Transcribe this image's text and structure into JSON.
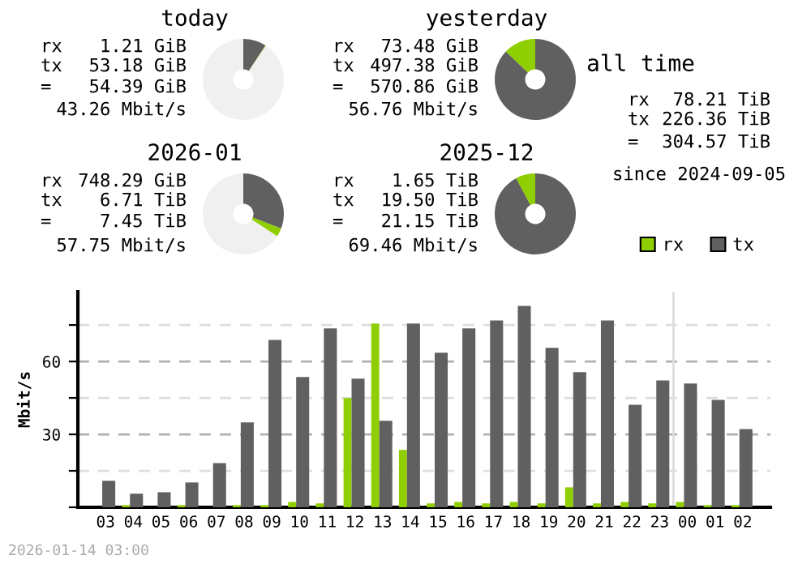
{
  "chart_data": [
    {
      "type": "donut",
      "title": "today",
      "categories": [
        null,
        null,
        null
      ],
      "values": [
        9.2,
        0.2,
        90.6
      ],
      "colors": [
        "#606060",
        "#8fce00",
        "#f0f0f0"
      ],
      "annotations": [
        "rx",
        "1.21 GiB",
        "tx",
        "53.18 GiB",
        "=",
        "54.39 GiB",
        "43.26 Mbit/s"
      ]
    },
    {
      "type": "donut",
      "title": "yesterday",
      "categories": [
        null,
        null
      ],
      "values": [
        87.1,
        12.9
      ],
      "colors": [
        "#606060",
        "#8fce00"
      ],
      "annotations": [
        "rx",
        "73.48 GiB",
        "tx",
        "497.38 GiB",
        "=",
        "570.86 GiB",
        "56.76 Mbit/s"
      ]
    },
    {
      "type": "donut",
      "title": "2026-01",
      "categories": [
        null,
        null,
        null
      ],
      "values": [
        30.9,
        3.4,
        65.7
      ],
      "colors": [
        "#606060",
        "#8fce00",
        "#f0f0f0"
      ],
      "annotations": [
        "rx",
        "748.29 GiB",
        "tx",
        "6.71 TiB",
        "=",
        "7.45 TiB",
        "57.75 Mbit/s"
      ]
    },
    {
      "type": "donut",
      "title": "2025-12",
      "categories": [
        null,
        null
      ],
      "values": [
        92.2,
        7.8
      ],
      "colors": [
        "#606060",
        "#8fce00"
      ],
      "annotations": [
        "rx",
        "1.65 TiB",
        "tx",
        "19.50 TiB",
        "=",
        "21.15 TiB",
        "69.46 Mbit/s"
      ]
    },
    {
      "type": "other",
      "title": "all time",
      "annotations": [
        "rx",
        "78.21 TiB",
        "tx",
        "226.36 TiB",
        "=",
        "304.57 TiB",
        "since 2024-09-05"
      ]
    },
    {
      "type": "bar",
      "ylabel": "Mbit/s",
      "categories": [
        "03",
        "04",
        "05",
        "06",
        "07",
        "08",
        "09",
        "10",
        "11",
        "12",
        "13",
        "14",
        "15",
        "16",
        "17",
        "18",
        "19",
        "20",
        "21",
        "22",
        "23",
        "00",
        "01",
        "02"
      ],
      "series": [
        {
          "name": "rx",
          "color": "#8fce00",
          "values": [
            0,
            0.9,
            0,
            0.9,
            0,
            0.9,
            0.9,
            2.2,
            1.6,
            44.9,
            75.6,
            23.6,
            1.6,
            2.2,
            1.6,
            2.2,
            1.6,
            8.2,
            1.6,
            2.2,
            1.6,
            2.2,
            0.9,
            0.9
          ]
        },
        {
          "name": "tx",
          "color": "#606060",
          "values": [
            10.9,
            5.6,
            6.2,
            10.2,
            18.2,
            34.9,
            68.9,
            53.6,
            73.6,
            52.9,
            35.6,
            75.6,
            63.6,
            73.6,
            76.9,
            82.9,
            65.6,
            55.6,
            76.9,
            42.2,
            52.2,
            50.9,
            44.2,
            32.2
          ]
        }
      ],
      "ylim": [
        0,
        88.7
      ],
      "yticks": [
        {
          "value": 0,
          "label": null
        },
        {
          "value": 15,
          "label": null
        },
        30,
        {
          "value": 45,
          "label": null
        },
        60,
        {
          "value": 75,
          "label": null
        }
      ],
      "grid": "y",
      "legend": "top right",
      "ref_lines": [
        {
          "axis": "x",
          "value": "00",
          "color": "#dddddd"
        }
      ],
      "annotations": [
        "2026-01-14 03:00"
      ]
    }
  ]
}
